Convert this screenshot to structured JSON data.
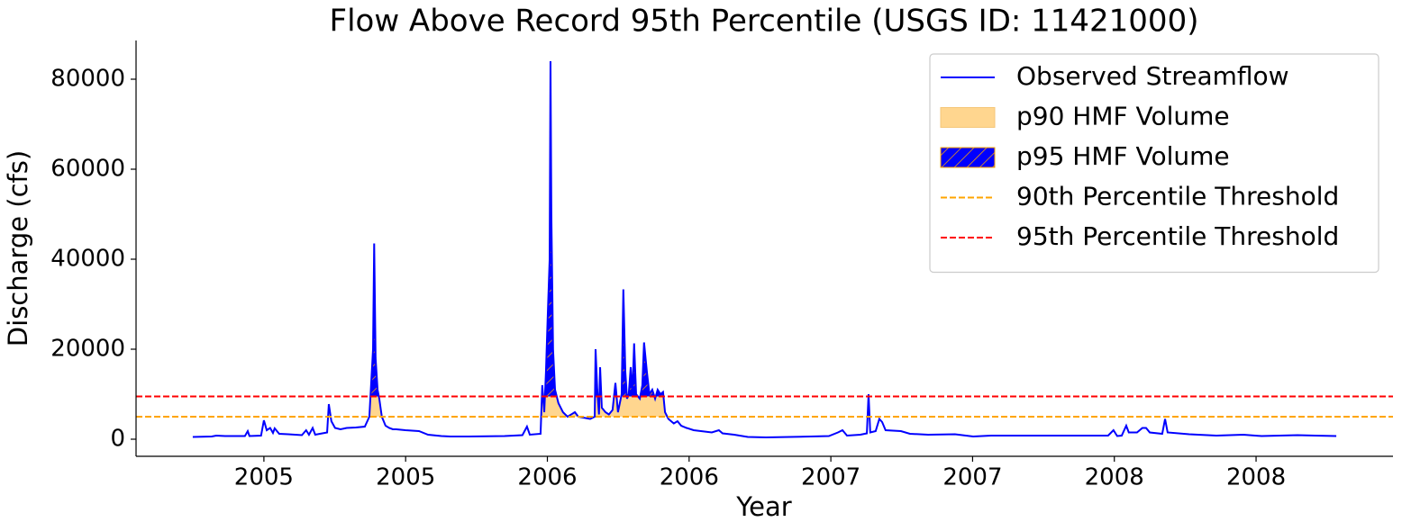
{
  "chart_data": {
    "type": "line",
    "title": "Flow Above Record 95th Percentile (USGS ID: 11421000)",
    "x_label": "Year",
    "y_label": "Discharge (cfs)",
    "x": [
      2004.749,
      2004.816,
      2004.832,
      2004.863,
      2004.933,
      2004.943,
      2004.949,
      2004.99,
      2005.0,
      2005.01,
      2005.022,
      2005.032,
      2005.038,
      2005.054,
      2005.086,
      2005.134,
      2005.149,
      2005.159,
      2005.172,
      2005.181,
      2005.223,
      2005.229,
      2005.238,
      2005.251,
      2005.27,
      2005.292,
      2005.324,
      2005.356,
      2005.372,
      2005.385,
      2005.389,
      2005.394,
      2005.401,
      2005.407,
      2005.416,
      2005.429,
      2005.442,
      2005.455,
      2005.467,
      2005.499,
      2005.547,
      2005.579,
      2005.626,
      2005.658,
      2005.722,
      2005.849,
      2005.912,
      2005.928,
      2005.938,
      2005.976,
      2005.982,
      2005.989,
      2005.995,
      2006.001,
      2006.008,
      2006.011,
      2006.014,
      2006.02,
      2006.027,
      2006.039,
      2006.055,
      2006.071,
      2006.097,
      2006.109,
      2006.151,
      2006.167,
      2006.17,
      2006.176,
      2006.182,
      2006.186,
      2006.192,
      2006.205,
      2006.217,
      2006.23,
      2006.24,
      2006.249,
      2006.262,
      2006.268,
      2006.275,
      2006.281,
      2006.287,
      2006.294,
      2006.3,
      2006.306,
      2006.313,
      2006.326,
      2006.335,
      2006.341,
      2006.351,
      2006.36,
      2006.37,
      2006.38,
      2006.389,
      2006.399,
      2006.408,
      2006.415,
      2006.427,
      2006.446,
      2006.459,
      2006.472,
      2006.491,
      2006.516,
      2006.58,
      2006.605,
      2006.618,
      2006.659,
      2006.707,
      2006.771,
      2006.929,
      2006.993,
      2007.025,
      2007.041,
      2007.057,
      2007.104,
      2007.127,
      2007.133,
      2007.139,
      2007.158,
      2007.171,
      2007.181,
      2007.193,
      2007.247,
      2007.279,
      2007.343,
      2007.438,
      2007.502,
      2007.565,
      2007.692,
      2007.883,
      2007.978,
      2007.997,
      2008.01,
      2008.026,
      2008.042,
      2008.051,
      2008.08,
      2008.099,
      2008.112,
      2008.125,
      2008.169,
      2008.179,
      2008.188,
      2008.264,
      2008.36,
      2008.455,
      2008.519,
      2008.646,
      2008.709,
      2008.783
    ],
    "series": [
      {
        "name": "Observed Streamflow",
        "color": "#0000ff",
        "values": [
          500,
          600,
          800,
          700,
          700,
          1800,
          700,
          800,
          4200,
          2000,
          2500,
          1400,
          2400,
          1200,
          1100,
          900,
          2000,
          1000,
          2500,
          1000,
          1500,
          7800,
          4000,
          2500,
          2200,
          2500,
          2600,
          2800,
          5000,
          20000,
          43500,
          18000,
          11000,
          9000,
          5000,
          3000,
          2500,
          2200,
          2200,
          2000,
          1800,
          1000,
          700,
          600,
          600,
          700,
          900,
          2800,
          1000,
          1200,
          12000,
          6000,
          15000,
          27000,
          40000,
          84000,
          50000,
          20000,
          11000,
          8000,
          6000,
          5000,
          6000,
          5000,
          4500,
          5000,
          20000,
          11000,
          5500,
          16000,
          7000,
          6000,
          5500,
          6500,
          12500,
          6000,
          10000,
          33300,
          15000,
          9000,
          10000,
          16000,
          10000,
          21300,
          10000,
          9000,
          12000,
          21500,
          15000,
          10000,
          11000,
          9000,
          11000,
          10000,
          10500,
          6000,
          4500,
          3500,
          4000,
          3000,
          2500,
          2000,
          1500,
          2000,
          1300,
          1000,
          500,
          400,
          600,
          700,
          1500,
          2000,
          800,
          1000,
          1300,
          10000,
          1500,
          1800,
          4500,
          3800,
          2000,
          1800,
          1200,
          1000,
          1100,
          600,
          800,
          800,
          800,
          800,
          2000,
          700,
          800,
          3000,
          1500,
          1500,
          2500,
          2500,
          1500,
          1200,
          4500,
          1500,
          1100,
          800,
          1000,
          700,
          900,
          800,
          700
        ]
      }
    ],
    "fills": [
      {
        "name": "p90 HMF Volume",
        "color": "#ffd68f"
      },
      {
        "name": "p95 HMF Volume",
        "color": "#0000ff",
        "hatch_color": "#ffa500"
      }
    ],
    "thresholds": [
      {
        "name": "90th Percentile Threshold",
        "value": 5000,
        "color": "#ffa500"
      },
      {
        "name": "95th Percentile Threshold",
        "value": 9500,
        "color": "#ff0000"
      }
    ],
    "xlim": [
      2004.549,
      2008.983
    ],
    "ylim": [
      -3800,
      88600
    ],
    "xticks": [
      {
        "value": 2005,
        "label": "2005"
      },
      {
        "value": 2005.5,
        "label": "2005"
      },
      {
        "value": 2006,
        "label": "2006"
      },
      {
        "value": 2006.5,
        "label": "2006"
      },
      {
        "value": 2007,
        "label": "2007"
      },
      {
        "value": 2007.5,
        "label": "2007"
      },
      {
        "value": 2008,
        "label": "2008"
      },
      {
        "value": 2008.5,
        "label": "2008"
      }
    ],
    "yticks": [
      0,
      20000,
      40000,
      60000,
      80000
    ],
    "legend": "upper right",
    "grid": false
  }
}
